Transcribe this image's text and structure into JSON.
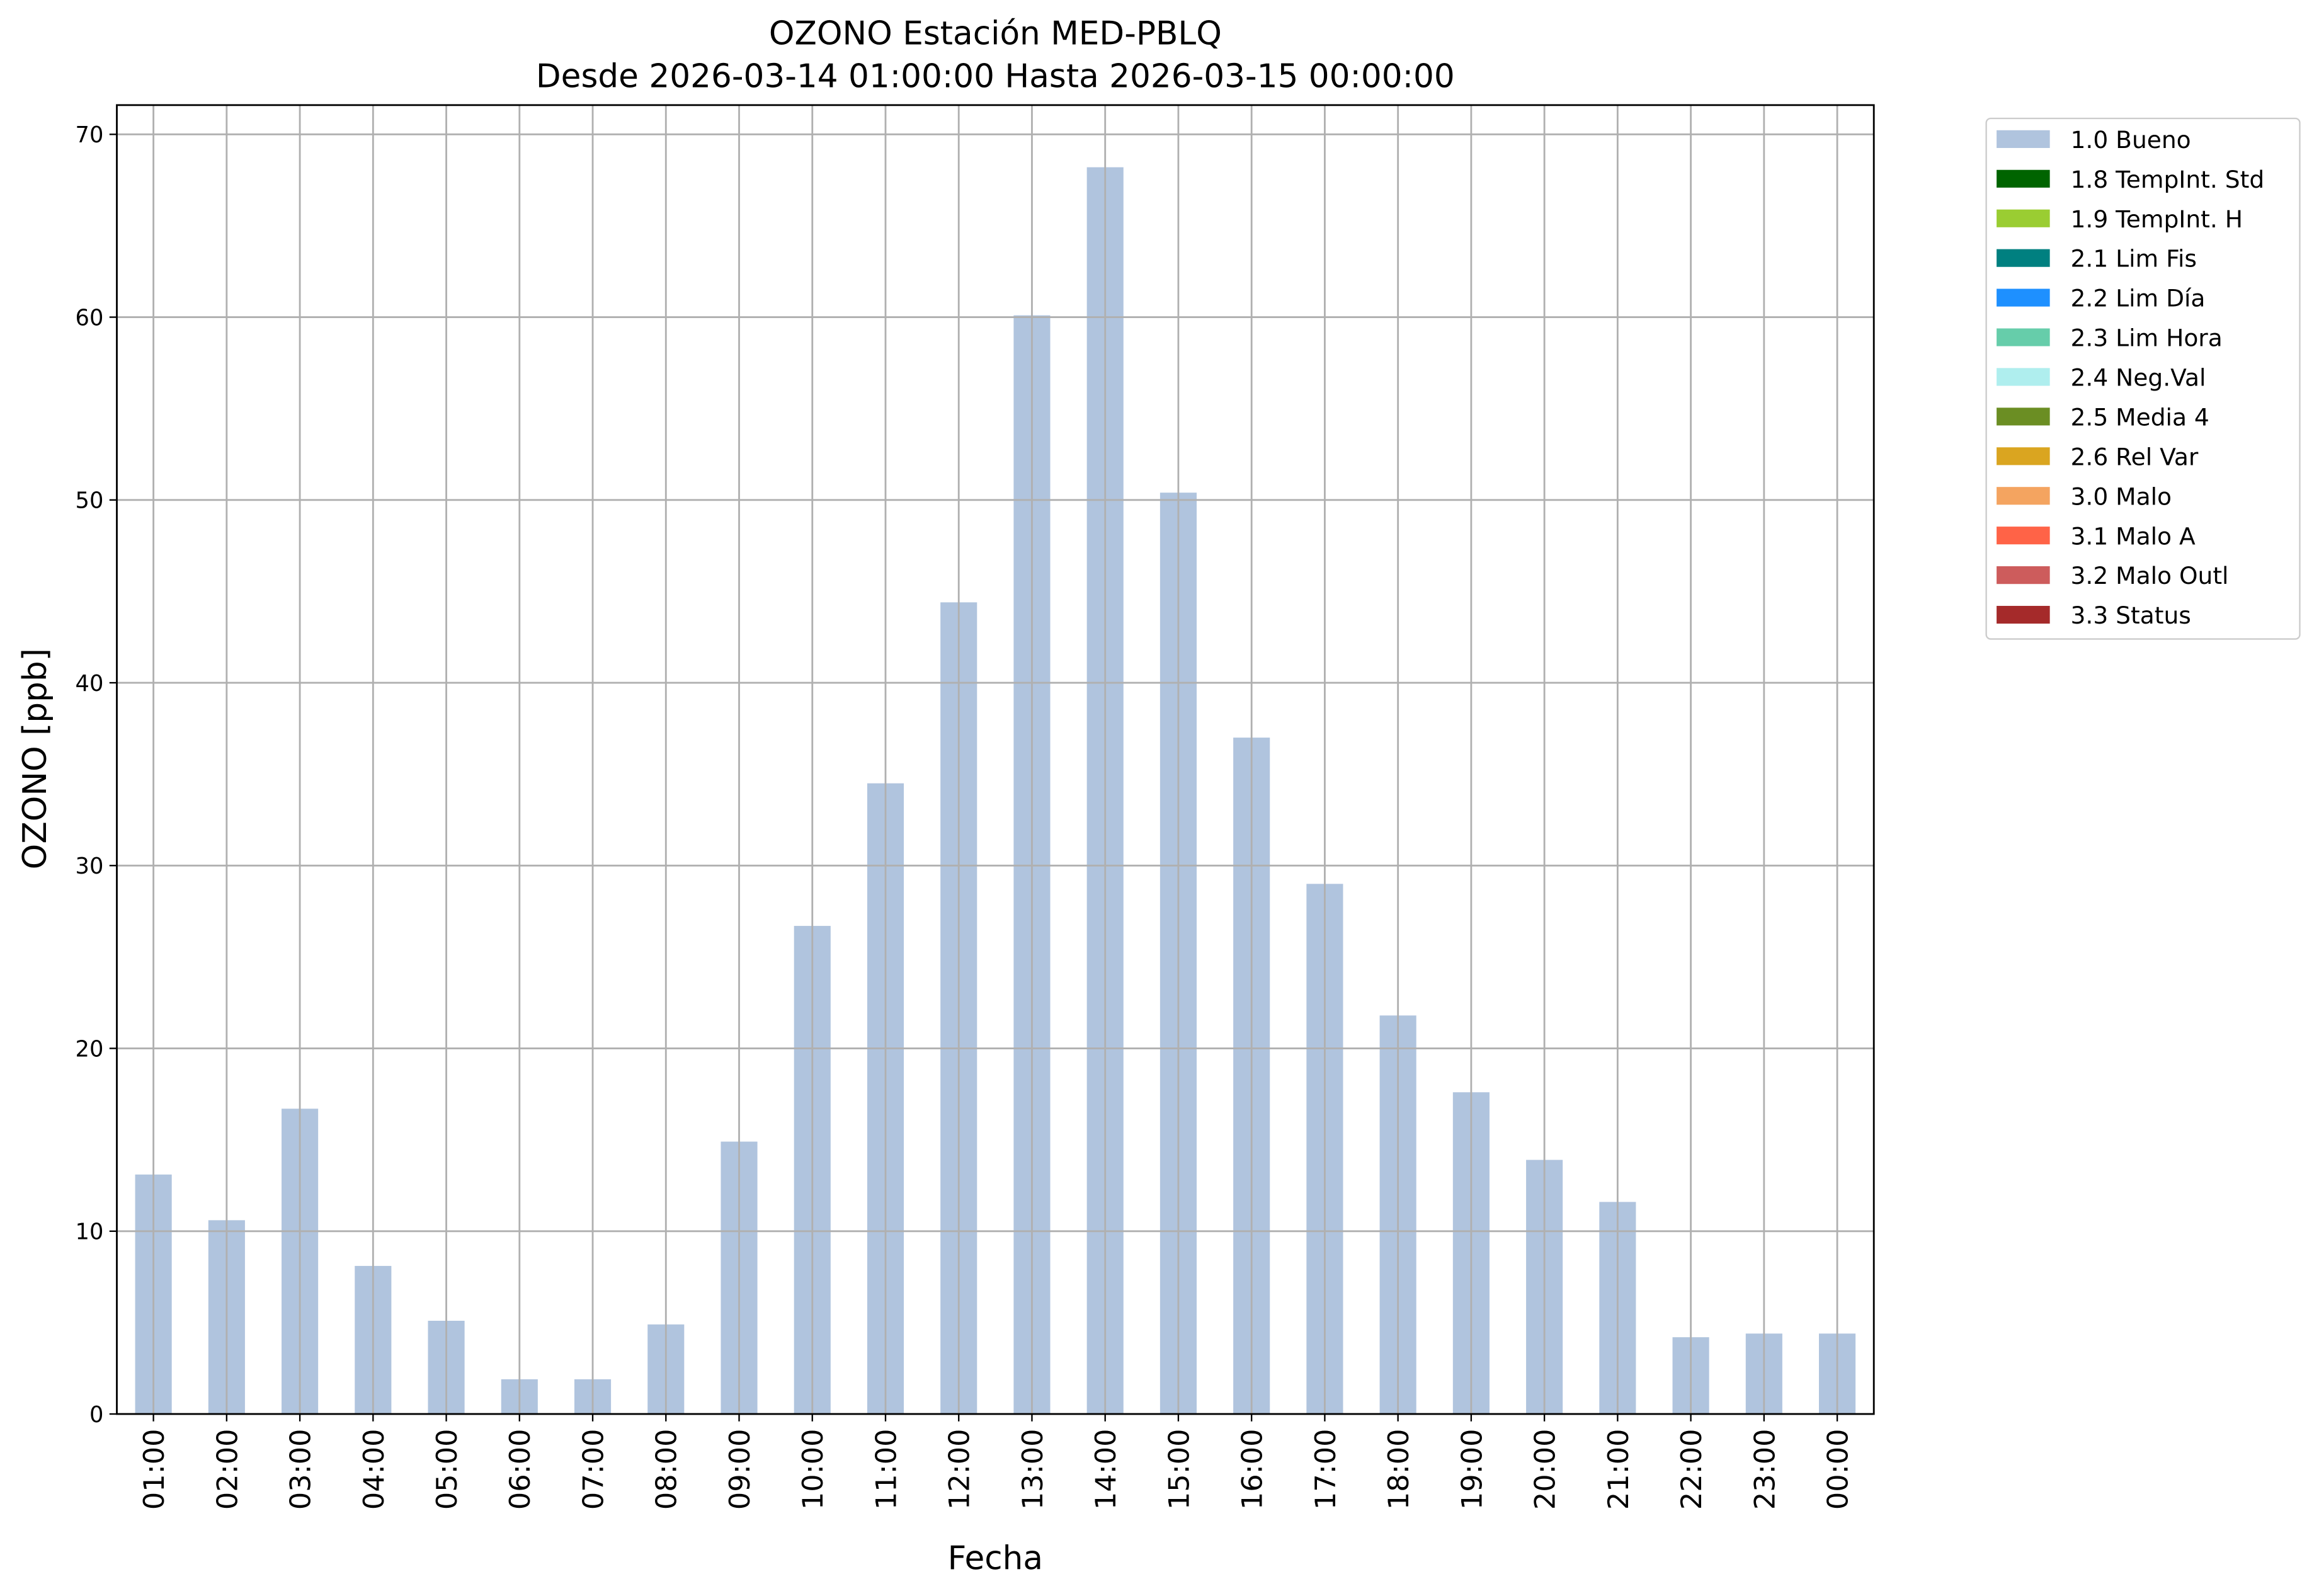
{
  "chart_data": {
    "type": "bar",
    "title": "OZONO Estación MED-PBLQ",
    "subtitle": "Desde 2026-03-14 01:00:00 Hasta 2026-03-15 00:00:00",
    "x_label": "Fecha",
    "y_label": "OZONO [ppb]",
    "categories": [
      "01:00",
      "02:00",
      "03:00",
      "04:00",
      "05:00",
      "06:00",
      "07:00",
      "08:00",
      "09:00",
      "10:00",
      "11:00",
      "12:00",
      "13:00",
      "14:00",
      "15:00",
      "16:00",
      "17:00",
      "18:00",
      "19:00",
      "20:00",
      "21:00",
      "22:00",
      "23:00",
      "00:00"
    ],
    "series": [
      {
        "name": "1.0 Bueno",
        "color": "#b0c4de",
        "values": [
          13.1,
          10.6,
          16.7,
          8.1,
          5.1,
          1.9,
          1.9,
          4.9,
          14.9,
          26.7,
          34.5,
          44.4,
          60.1,
          68.2,
          50.4,
          37.0,
          29.0,
          21.8,
          17.6,
          13.9,
          11.6,
          4.2,
          4.4,
          4.4
        ]
      }
    ],
    "legend_entries": [
      {
        "name": "1.8 TempInt. Std",
        "color": "#006400"
      },
      {
        "name": "1.9 TempInt. H",
        "color": "#9acd32"
      },
      {
        "name": "2.1 Lim Fis",
        "color": "#008080"
      },
      {
        "name": "2.2 Lim Día",
        "color": "#1e90ff"
      },
      {
        "name": "2.3 Lim Hora",
        "color": "#66cdaa"
      },
      {
        "name": "2.4 Neg.Val",
        "color": "#afeeee"
      },
      {
        "name": "2.5 Media 4",
        "color": "#6b8e23"
      },
      {
        "name": "2.6 Rel Var",
        "color": "#daa520"
      },
      {
        "name": "3.0 Malo",
        "color": "#f4a460"
      },
      {
        "name": "3.1 Malo A",
        "color": "#ff6347"
      },
      {
        "name": "3.2 Malo Outl",
        "color": "#cd5c5c"
      },
      {
        "name": "3.3 Status",
        "color": "#a52a2a"
      }
    ],
    "ylim": [
      0,
      71.6
    ],
    "yticks": [
      0,
      10,
      20,
      30,
      40,
      50,
      60,
      70
    ],
    "grid": true,
    "legend": "outside-upper-right"
  }
}
